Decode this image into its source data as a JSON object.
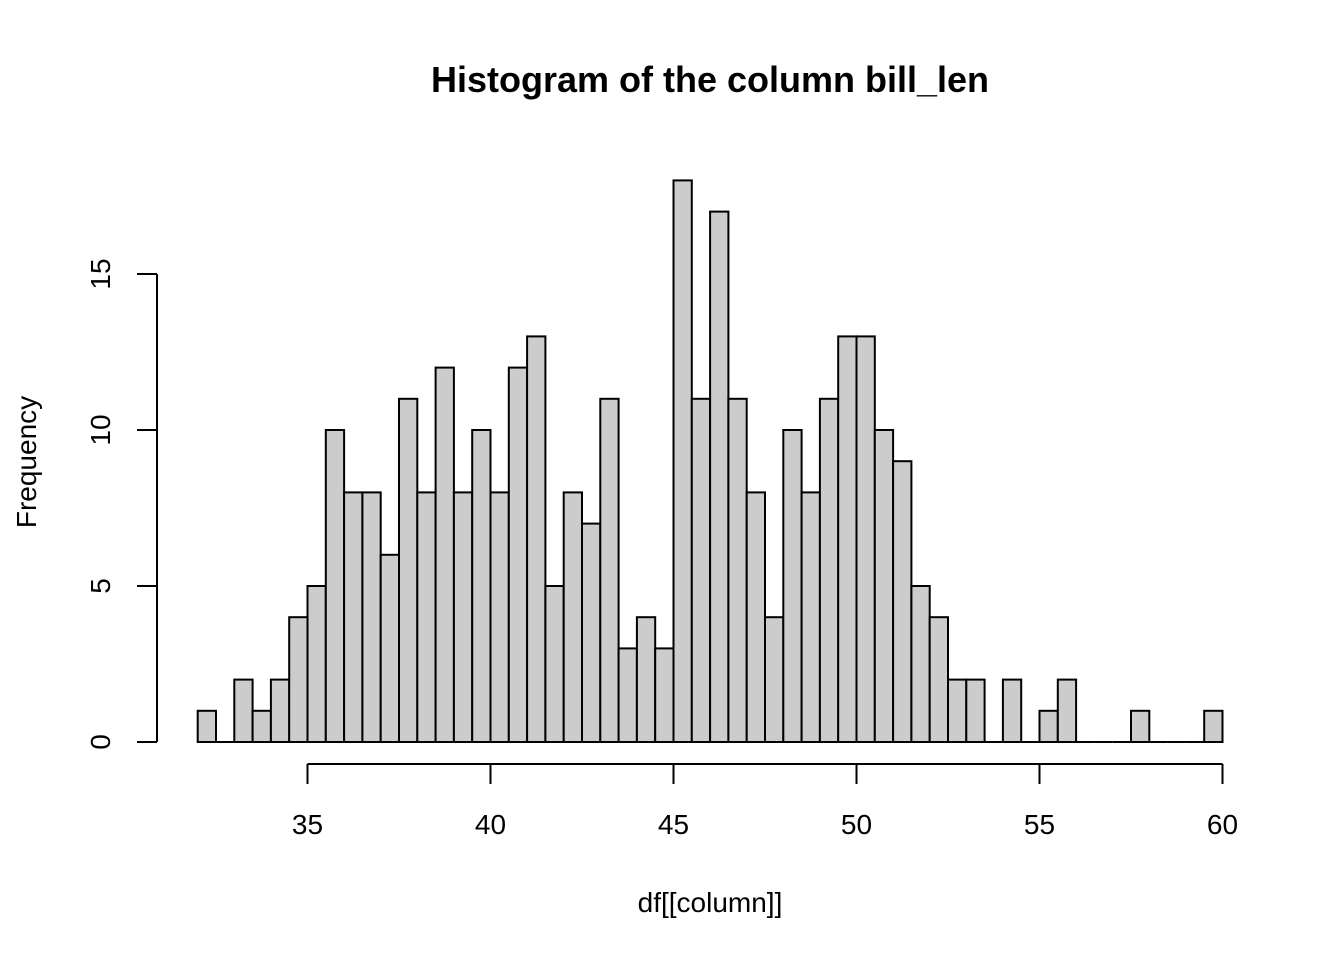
{
  "chart_data": {
    "type": "bar",
    "title": "Histogram of the column bill_len",
    "xlabel": "df[[column]]",
    "ylabel": "Frequency",
    "bar_color": "#cccccc",
    "border_color": "#000000",
    "bin_width": 0.5,
    "bin_start": 32,
    "values": [
      1,
      0,
      2,
      1,
      2,
      4,
      5,
      10,
      8,
      8,
      6,
      11,
      8,
      12,
      8,
      10,
      8,
      12,
      13,
      5,
      8,
      7,
      11,
      3,
      4,
      3,
      18,
      11,
      17,
      11,
      8,
      4,
      10,
      8,
      11,
      13,
      13,
      10,
      9,
      5,
      4,
      2,
      2,
      0,
      2,
      0,
      1,
      2,
      0,
      0,
      0,
      1,
      0,
      0,
      0,
      1
    ],
    "xlim": [
      32,
      60
    ],
    "ylim": [
      0,
      18
    ],
    "x_ticks": [
      35,
      40,
      45,
      50,
      55,
      60
    ],
    "y_ticks": [
      0,
      5,
      10,
      15
    ],
    "grid": false
  }
}
